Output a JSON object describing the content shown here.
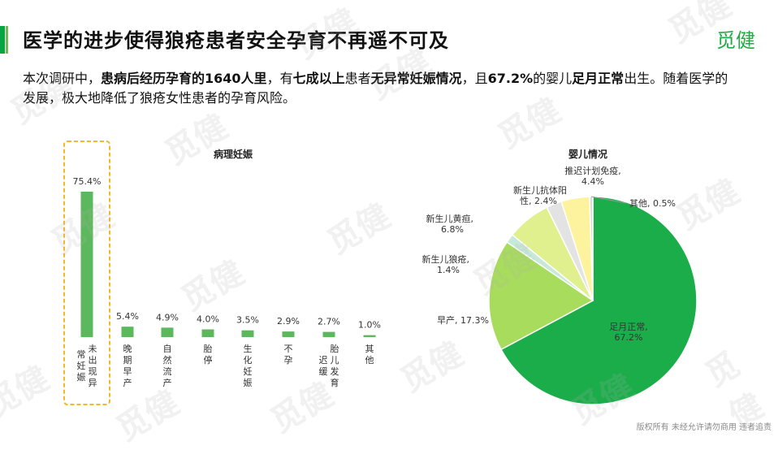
{
  "header": {
    "title": "医学的进步使得狼疮患者安全孕育不再遥不可及",
    "brand": "觅健"
  },
  "intro": {
    "segments": [
      {
        "text": "本次调研中，",
        "bold": false
      },
      {
        "text": "患病后经历孕育的1640人里",
        "bold": true
      },
      {
        "text": "，有",
        "bold": false
      },
      {
        "text": "七成以上",
        "bold": true
      },
      {
        "text": "患者",
        "bold": false
      },
      {
        "text": "无异常妊娠情况",
        "bold": true
      },
      {
        "text": "，且",
        "bold": false
      },
      {
        "text": "67.2%",
        "bold": true
      },
      {
        "text": "的婴儿",
        "bold": false
      },
      {
        "text": "足月正常",
        "bold": true
      },
      {
        "text": "出生。随着医学的发展，极大地降低了狼疮女性患者的孕育风险。",
        "bold": false
      }
    ]
  },
  "footer": "版权所有 未经允许请勿商用 违者追责",
  "watermark_text": "觅健",
  "colors": {
    "bar": "#5cb85c",
    "highlight_border": "#f2b82b",
    "pie_green": "#1cad4b",
    "pie_lightgreen": "#a8dc5c",
    "pie_teal": "#c6e9d9",
    "pie_yellowgreen": "#e0f08e",
    "pie_gray": "#e3e3e3",
    "pie_yellow": "#fdf39e",
    "pie_lightgray": "#d9d9d9"
  },
  "chart_data": [
    {
      "type": "bar",
      "title": "病理妊娠",
      "categories": [
        "未出现异常妊娠",
        "晚期早产",
        "自然流产",
        "胎停",
        "生化妊娠",
        "不孕",
        "胎儿发育迟缓",
        "其他"
      ],
      "values": [
        75.4,
        5.4,
        4.9,
        4.0,
        3.5,
        2.9,
        2.7,
        1.0
      ],
      "value_labels": [
        "75.4%",
        "5.4%",
        "4.9%",
        "4.0%",
        "3.5%",
        "2.9%",
        "2.7%",
        "1.0%"
      ],
      "highlight_index": 0,
      "grid": false,
      "legend": "none"
    },
    {
      "type": "pie",
      "title": "婴儿情况",
      "slices": [
        {
          "label": "足月正常,",
          "label2": "67.2%",
          "value": 67.2
        },
        {
          "label": "早产, 17.3%",
          "value": 17.3
        },
        {
          "label": "新生儿狼疮,",
          "label2": "1.4%",
          "value": 1.4
        },
        {
          "label": "新生儿黄疸,",
          "label2": "6.8%",
          "value": 6.8
        },
        {
          "label": "新生儿抗体阳",
          "label2": "性, 2.4%",
          "value": 2.4
        },
        {
          "label": "推迟计划免疫,",
          "label2": "4.4%",
          "value": 4.4
        },
        {
          "label": "其他, 0.5%",
          "value": 0.5
        }
      ],
      "legend": "none"
    }
  ]
}
